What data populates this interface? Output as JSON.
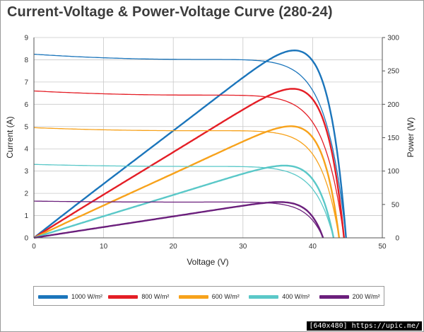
{
  "title": "Current-Voltage & Power-Voltage Curve (280-24)",
  "watermark": "[640x480] https://upic.me/",
  "chart_data": {
    "type": "line",
    "title": "Current-Voltage & Power-Voltage Curve (280-24)",
    "xlabel": "Voltage (V)",
    "ylabel": "Current (A)",
    "y2label": "Power (W)",
    "xlim": [
      0,
      50
    ],
    "ylim": [
      0,
      9
    ],
    "y2lim": [
      0,
      300
    ],
    "x_ticks": [
      0,
      10,
      20,
      30,
      40,
      50
    ],
    "y_ticks": [
      0,
      1,
      2,
      3,
      4,
      5,
      6,
      7,
      8,
      9
    ],
    "y2_ticks": [
      0,
      50,
      100,
      150,
      200,
      250,
      300
    ],
    "grid": true,
    "legend_position": "bottom",
    "series": [
      {
        "name": "1000 W/m²",
        "color": "#1b75bb",
        "isc": 8.25,
        "voc": 44.8,
        "vmp": 35.6,
        "pmax": 282
      },
      {
        "name": "800 W/m²",
        "color": "#e41e26",
        "isc": 6.6,
        "voc": 44.5,
        "vmp": 35.0,
        "pmax": 223
      },
      {
        "name": "600 W/m²",
        "color": "#f7a21b",
        "isc": 4.95,
        "voc": 43.8,
        "vmp": 34.5,
        "pmax": 166
      },
      {
        "name": "400 W/m²",
        "color": "#5ac8c8",
        "isc": 3.3,
        "voc": 43.0,
        "vmp": 34.5,
        "pmax": 109
      },
      {
        "name": "200 W/m²",
        "color": "#6b1f7c",
        "isc": 1.65,
        "voc": 41.5,
        "vmp": 34.0,
        "pmax": 54
      }
    ]
  }
}
